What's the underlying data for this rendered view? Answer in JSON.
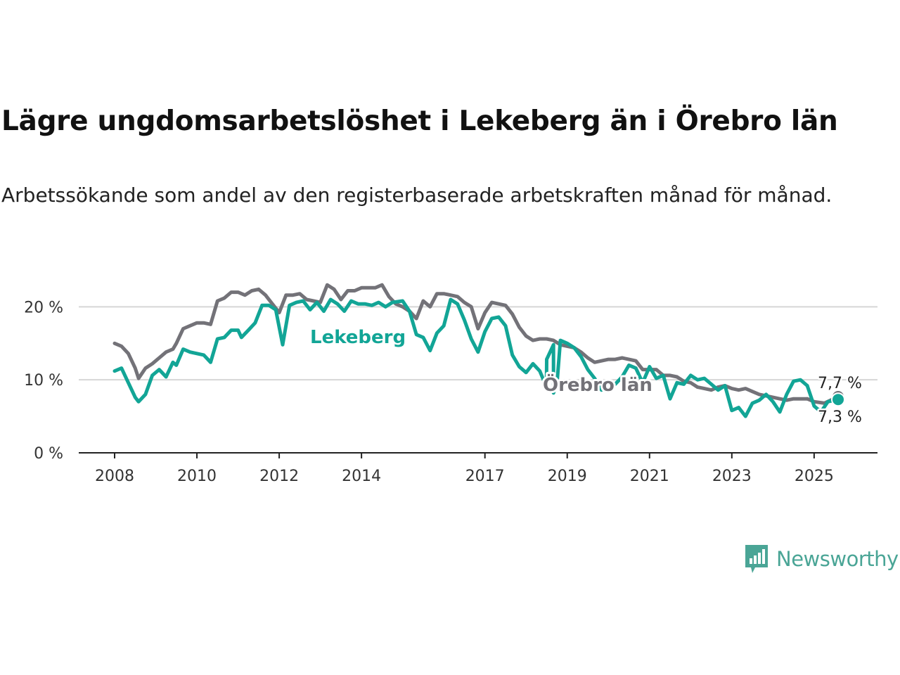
{
  "header": {
    "title": "Lägre ungdomsarbetslöshet i Lekeberg än i Örebro län",
    "subtitle": "Arbetssökande som andel av den registerbaserade arbetskraften månad för månad."
  },
  "brand": {
    "name": "Newsworthy",
    "icon": "newsworthy-logo-icon"
  },
  "colors": {
    "lekeberg": "#12a596",
    "orebro": "#737278",
    "grid": "#d6d6d6",
    "axis": "#222222"
  },
  "chart_data": {
    "type": "line",
    "title": "Lägre ungdomsarbetslöshet i Lekeberg än i Örebro län",
    "xlabel": "",
    "ylabel": "",
    "x_ticks": [
      "2008",
      "2010",
      "2012",
      "2014",
      "2017",
      "2019",
      "2021",
      "2023",
      "2025"
    ],
    "y_ticks": [
      "0 %",
      "10 %",
      "20 %"
    ],
    "ylim": [
      0,
      23.5
    ],
    "grid": true,
    "x_range": [
      "2008-01",
      "2025-08"
    ],
    "series": [
      {
        "name": "Lekeberg",
        "end_label": "7,3 %",
        "points": [
          [
            "2008-01",
            11.2
          ],
          [
            "2008-03",
            11.6
          ],
          [
            "2008-05",
            9.6
          ],
          [
            "2008-07",
            7.6
          ],
          [
            "2008-08",
            7.0
          ],
          [
            "2008-10",
            8.0
          ],
          [
            "2008-12",
            10.6
          ],
          [
            "2009-02",
            11.4
          ],
          [
            "2009-04",
            10.4
          ],
          [
            "2009-06",
            12.4
          ],
          [
            "2009-07",
            12.0
          ],
          [
            "2009-09",
            14.2
          ],
          [
            "2009-11",
            13.8
          ],
          [
            "2010-01",
            13.6
          ],
          [
            "2010-03",
            13.4
          ],
          [
            "2010-05",
            12.4
          ],
          [
            "2010-07",
            15.6
          ],
          [
            "2010-09",
            15.8
          ],
          [
            "2010-11",
            16.8
          ],
          [
            "2011-01",
            16.8
          ],
          [
            "2011-02",
            15.8
          ],
          [
            "2011-04",
            16.8
          ],
          [
            "2011-06",
            17.8
          ],
          [
            "2011-08",
            20.2
          ],
          [
            "2011-10",
            20.2
          ],
          [
            "2011-12",
            19.6
          ],
          [
            "2012-02",
            14.8
          ],
          [
            "2012-04",
            20.2
          ],
          [
            "2012-06",
            20.6
          ],
          [
            "2012-08",
            20.8
          ],
          [
            "2012-10",
            19.6
          ],
          [
            "2012-12",
            20.6
          ],
          [
            "2013-02",
            19.4
          ],
          [
            "2013-04",
            21.0
          ],
          [
            "2013-06",
            20.4
          ],
          [
            "2013-08",
            19.4
          ],
          [
            "2013-10",
            20.8
          ],
          [
            "2013-12",
            20.4
          ],
          [
            "2014-02",
            20.4
          ],
          [
            "2014-04",
            20.2
          ],
          [
            "2014-06",
            20.6
          ],
          [
            "2014-08",
            20.0
          ],
          [
            "2014-10",
            20.6
          ],
          [
            "2015-01",
            20.8
          ],
          [
            "2015-03",
            19.4
          ],
          [
            "2015-05",
            16.2
          ],
          [
            "2015-07",
            15.8
          ],
          [
            "2015-09",
            14.0
          ],
          [
            "2015-11",
            16.4
          ],
          [
            "2016-01",
            17.4
          ],
          [
            "2016-03",
            21.0
          ],
          [
            "2016-05",
            20.4
          ],
          [
            "2016-07",
            18.2
          ],
          [
            "2016-09",
            15.6
          ],
          [
            "2016-11",
            13.8
          ],
          [
            "2017-01",
            16.6
          ],
          [
            "2017-03",
            18.4
          ],
          [
            "2017-05",
            18.6
          ],
          [
            "2017-07",
            17.4
          ],
          [
            "2017-09",
            13.4
          ],
          [
            "2017-11",
            11.8
          ],
          [
            "2018-01",
            11.0
          ],
          [
            "2018-03",
            12.2
          ],
          [
            "2018-05",
            11.2
          ],
          [
            "2018-07",
            12.8
          ],
          [
            "2018-09",
            14.8
          ],
          [
            "2018-11",
            15.4
          ],
          [
            "2019-01",
            15.0
          ],
          [
            "2019-03",
            14.4
          ],
          [
            "2019-05",
            13.2
          ],
          [
            "2019-07",
            11.4
          ],
          [
            "2019-09",
            10.2
          ],
          [
            "2019-11",
            8.6
          ],
          [
            "2020-01",
            9.8
          ],
          [
            "2020-03",
            9.4
          ],
          [
            "2020-05",
            10.4
          ],
          [
            "2020-07",
            12.0
          ],
          [
            "2020-09",
            11.6
          ],
          [
            "2020-11",
            9.6
          ],
          [
            "2021-01",
            11.8
          ],
          [
            "2021-03",
            10.2
          ],
          [
            "2021-05",
            10.6
          ],
          [
            "2021-07",
            7.4
          ],
          [
            "2021-09",
            9.6
          ],
          [
            "2021-11",
            9.4
          ],
          [
            "2022-01",
            10.6
          ],
          [
            "2022-03",
            10.0
          ],
          [
            "2022-05",
            10.2
          ],
          [
            "2022-07",
            9.4
          ],
          [
            "2022-09",
            8.6
          ],
          [
            "2022-11",
            9.2
          ],
          [
            "2023-01",
            5.8
          ],
          [
            "2023-03",
            6.2
          ],
          [
            "2023-05",
            5.0
          ],
          [
            "2023-07",
            6.8
          ],
          [
            "2023-09",
            7.2
          ],
          [
            "2023-11",
            8.0
          ],
          [
            "2024-01",
            7.0
          ],
          [
            "2024-03",
            5.6
          ],
          [
            "2024-05",
            8.0
          ],
          [
            "2024-07",
            9.8
          ],
          [
            "2024-09",
            10.0
          ],
          [
            "2024-11",
            9.2
          ],
          [
            "2018-06-30",
            9.0
          ],
          [
            "2018-09",
            8.2
          ],
          [
            "2018-10",
            9.4
          ]
        ]
      },
      {
        "name": "Örebro län",
        "end_label": "7,7 %",
        "points": [
          [
            "2008-01",
            15.0
          ],
          [
            "2008-03",
            14.6
          ],
          [
            "2008-05",
            13.6
          ],
          [
            "2008-07",
            11.6
          ],
          [
            "2008-08",
            10.2
          ],
          [
            "2008-10",
            11.6
          ],
          [
            "2008-12",
            12.2
          ],
          [
            "2009-02",
            13.0
          ],
          [
            "2009-04",
            13.8
          ],
          [
            "2009-06",
            14.2
          ],
          [
            "2009-07",
            15.0
          ],
          [
            "2009-09",
            17.0
          ],
          [
            "2009-11",
            17.4
          ],
          [
            "2010-01",
            17.8
          ],
          [
            "2010-03",
            17.8
          ],
          [
            "2010-05",
            17.6
          ],
          [
            "2010-07",
            20.8
          ],
          [
            "2010-09",
            21.2
          ],
          [
            "2010-11",
            22.0
          ],
          [
            "2011-01",
            22.0
          ],
          [
            "2011-03",
            21.6
          ],
          [
            "2011-05",
            22.2
          ],
          [
            "2011-07",
            22.4
          ],
          [
            "2011-09",
            21.6
          ],
          [
            "2011-11",
            20.4
          ],
          [
            "2012-01",
            19.2
          ],
          [
            "2012-03",
            21.6
          ],
          [
            "2012-05",
            21.6
          ],
          [
            "2012-07",
            21.8
          ],
          [
            "2012-09",
            21.0
          ],
          [
            "2012-11",
            20.8
          ],
          [
            "2013-01",
            20.6
          ],
          [
            "2013-03",
            23.0
          ],
          [
            "2013-05",
            22.4
          ],
          [
            "2013-07",
            21.0
          ],
          [
            "2013-09",
            22.2
          ],
          [
            "2013-11",
            22.2
          ],
          [
            "2014-01",
            22.6
          ],
          [
            "2014-03",
            22.6
          ],
          [
            "2014-05",
            22.6
          ],
          [
            "2014-07",
            23.0
          ],
          [
            "2014-09",
            21.4
          ],
          [
            "2014-11",
            20.4
          ],
          [
            "2015-01",
            20.0
          ],
          [
            "2015-03",
            19.4
          ],
          [
            "2015-05",
            18.4
          ],
          [
            "2015-07",
            20.8
          ],
          [
            "2015-09",
            20.0
          ],
          [
            "2015-11",
            21.8
          ],
          [
            "2016-01",
            21.8
          ],
          [
            "2016-03",
            21.6
          ],
          [
            "2016-05",
            21.4
          ],
          [
            "2016-07",
            20.6
          ],
          [
            "2016-09",
            20.0
          ],
          [
            "2016-11",
            17.0
          ],
          [
            "2017-01",
            19.2
          ],
          [
            "2017-03",
            20.6
          ],
          [
            "2017-05",
            20.4
          ],
          [
            "2017-07",
            20.2
          ],
          [
            "2017-09",
            19.0
          ],
          [
            "2017-11",
            17.2
          ],
          [
            "2018-01",
            16.0
          ],
          [
            "2018-03",
            15.4
          ],
          [
            "2018-05",
            15.6
          ],
          [
            "2018-07",
            15.6
          ],
          [
            "2018-09",
            15.4
          ],
          [
            "2018-11",
            14.8
          ],
          [
            "2019-01",
            14.6
          ],
          [
            "2019-03",
            14.4
          ],
          [
            "2019-05",
            13.8
          ],
          [
            "2019-07",
            13.0
          ],
          [
            "2019-09",
            12.4
          ],
          [
            "2019-11",
            12.6
          ],
          [
            "2020-01",
            12.8
          ],
          [
            "2020-03",
            12.8
          ],
          [
            "2020-05",
            13.0
          ],
          [
            "2020-07",
            12.8
          ],
          [
            "2020-09",
            12.6
          ],
          [
            "2020-11",
            11.4
          ],
          [
            "2021-01",
            11.4
          ],
          [
            "2021-03",
            11.4
          ],
          [
            "2021-05",
            10.6
          ],
          [
            "2021-07",
            10.6
          ],
          [
            "2021-09",
            10.4
          ],
          [
            "2021-11",
            9.8
          ],
          [
            "2022-01",
            9.6
          ],
          [
            "2022-03",
            9.0
          ],
          [
            "2022-05",
            8.8
          ],
          [
            "2022-07",
            8.6
          ],
          [
            "2022-09",
            9.0
          ],
          [
            "2022-11",
            9.2
          ],
          [
            "2023-01",
            8.8
          ],
          [
            "2023-03",
            8.6
          ],
          [
            "2023-05",
            8.8
          ],
          [
            "2023-07",
            8.4
          ],
          [
            "2023-09",
            8.0
          ],
          [
            "2023-11",
            7.8
          ],
          [
            "2024-01",
            7.6
          ],
          [
            "2024-03",
            7.4
          ],
          [
            "2024-05",
            7.2
          ],
          [
            "2024-07",
            7.4
          ],
          [
            "2024-09",
            7.4
          ],
          [
            "2024-11",
            7.4
          ]
        ]
      }
    ]
  }
}
